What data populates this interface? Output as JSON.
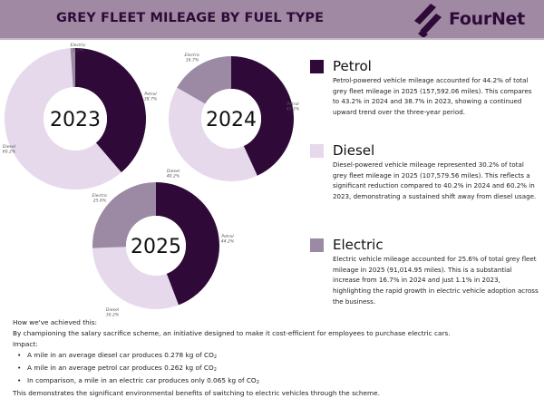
{
  "header": {
    "title": "GREY FLEET MILEAGE BY FUEL TYPE",
    "logo_text": "FourNet",
    "logo_icon": "fournet-slash-logo-icon"
  },
  "colors": {
    "header_bg": "#a08aa3",
    "title": "#2f0a38",
    "Petrol": "#2f0a38",
    "Diesel": "#e6d9ec",
    "Electric": "#9c8aa5"
  },
  "chart_data": [
    {
      "type": "pie",
      "donut": true,
      "title": "2023",
      "categories": [
        "Petrol",
        "Diesel",
        "Electric"
      ],
      "values": [
        38.7,
        60.2,
        1.1
      ],
      "labels": [
        "Petrol 38.7%",
        "Diesel 60.2%",
        "Electric 1.1%"
      ]
    },
    {
      "type": "pie",
      "donut": true,
      "title": "2024",
      "categories": [
        "Petrol",
        "Diesel",
        "Electric"
      ],
      "values": [
        43.2,
        40.2,
        16.7
      ],
      "labels": [
        "Petrol 43.2%",
        "Diesel 40.2%",
        "Electric 16.7%"
      ]
    },
    {
      "type": "pie",
      "donut": true,
      "title": "2025",
      "categories": [
        "Petrol",
        "Diesel",
        "Electric"
      ],
      "values": [
        44.2,
        30.2,
        25.6
      ],
      "labels": [
        "Petrol 44.2%",
        "Diesel 30.2%",
        "Electric 25.6%"
      ]
    }
  ],
  "legend": [
    {
      "title": "Petrol",
      "text": "Petrol-powered vehicle mileage accounted for 44.2% of total grey fleet mileage in 2025 (157,592.06 miles). This compares to 43.2% in 2024 and 38.7% in 2023, showing a continued upward trend over the three-year period."
    },
    {
      "title": "Diesel",
      "text": "Diesel-powered vehicle mileage represented 30.2% of total grey fleet mileage in 2025 (107,579.56 miles). This reflects a significant reduction compared to 40.2% in 2024 and 60.2% in 2023, demonstrating a sustained shift away from diesel usage."
    },
    {
      "title": "Electric",
      "text": "Electric vehicle mileage accounted for 25.6% of total grey fleet mileage in 2025 (91,014.95 miles). This is a substantial increase from 16.7% in 2024 and just 1.1% in 2023, highlighting the rapid growth in electric vehicle adoption across the business."
    }
  ],
  "summary": {
    "heading": "How we've achieved this:",
    "intro": "By championing the salary sacrifice scheme, an initiative designed to make it cost-efficient for employees to purchase electric cars.",
    "impact_label": "Impact:",
    "bullets": [
      {
        "text": "A mile in an average diesel car produces 0.278 kg of CO",
        "sub": "2"
      },
      {
        "text": "A mile in an average petrol car produces 0.262 kg of CO",
        "sub": "2"
      },
      {
        "text": "In comparison, a mile in an electric car produces only 0.065 kg of CO",
        "sub": "2"
      }
    ],
    "conclusion": "This demonstrates the significant environmental benefits of switching to electric vehicles through the scheme."
  }
}
